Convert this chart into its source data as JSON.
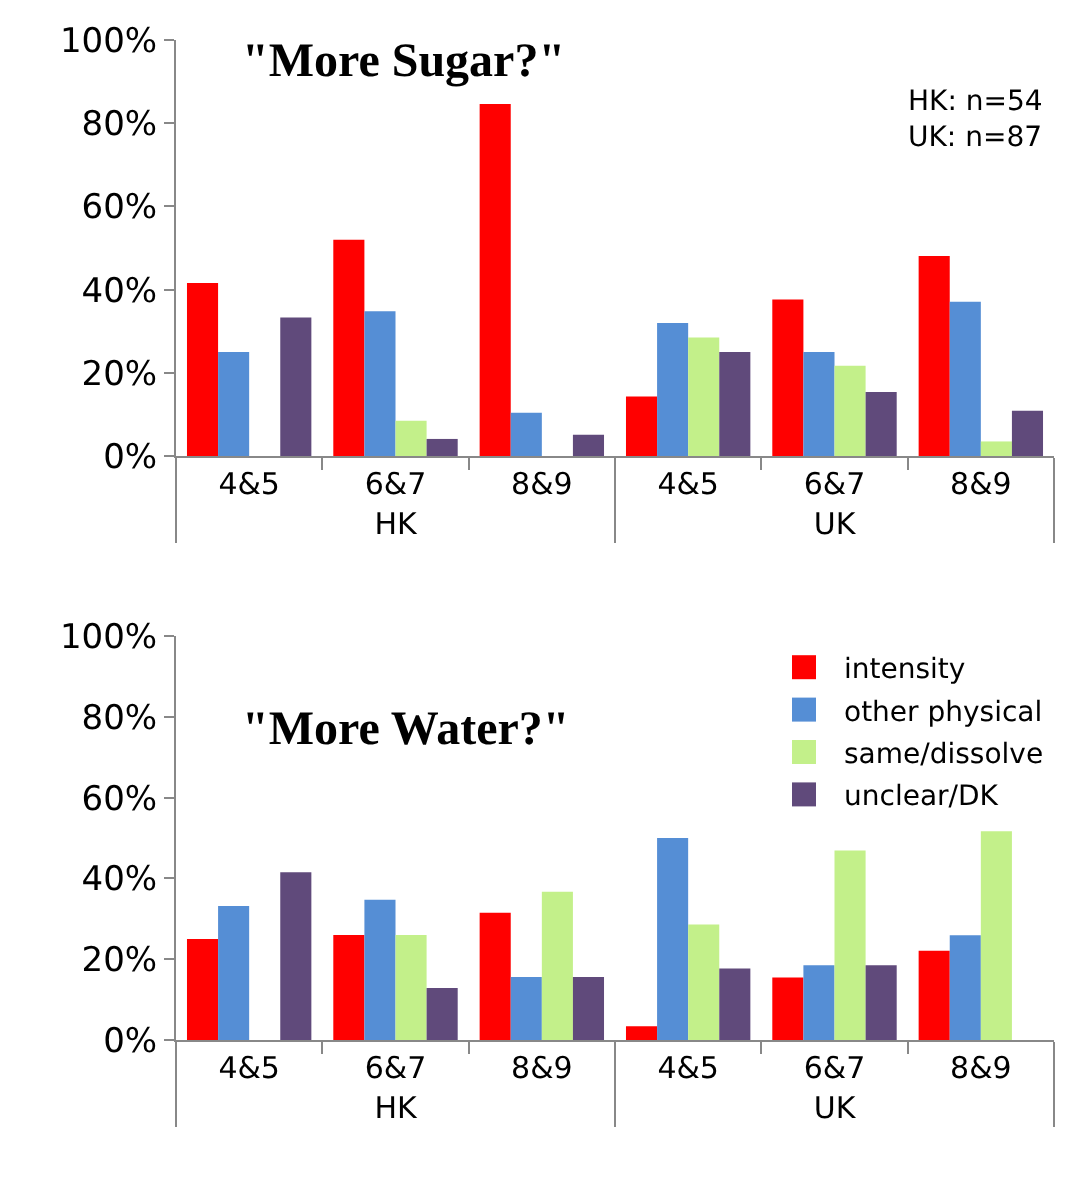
{
  "chart_data": [
    {
      "type": "bar",
      "title": "\"More Sugar?\"",
      "categories": [
        "4&5",
        "6&7",
        "8&9",
        "4&5",
        "6&7",
        "8&9"
      ],
      "ylim": [
        0,
        100
      ],
      "yticks": [
        {
          "value": 0,
          "label": "0%"
        },
        {
          "value": 20,
          "label": "20%"
        },
        {
          "value": 40,
          "label": "40%"
        },
        {
          "value": 60,
          "label": "60%"
        },
        {
          "value": 80,
          "label": "80%"
        },
        {
          "value": 100,
          "label": "100%"
        }
      ],
      "legend": false,
      "annotations": [
        "HK",
        "UK",
        "HK: n=54\nUK: n=87"
      ],
      "series": [
        {
          "color": "#ff0000",
          "values": [
            41.6,
            52,
            84.6,
            14.3,
            37.6,
            48.1
          ]
        },
        {
          "color": "#558ed5",
          "values": [
            25,
            34.8,
            10.4,
            32,
            25,
            37.1
          ]
        },
        {
          "color": "#c3f08a",
          "values": [
            null,
            8.5,
            null,
            28.5,
            21.7,
            3.5
          ]
        },
        {
          "color": "#604a7b",
          "values": [
            33.3,
            4.1,
            5.1,
            25,
            15.4,
            10.9
          ]
        }
      ]
    },
    {
      "type": "bar",
      "title": "\"More Water?\"",
      "categories": [
        "4&5",
        "6&7",
        "8&9",
        "4&5",
        "6&7",
        "8&9"
      ],
      "ylim": [
        0,
        100
      ],
      "yticks": [
        {
          "value": 0,
          "label": "0%"
        },
        {
          "value": 20,
          "label": "20%"
        },
        {
          "value": 40,
          "label": "40%"
        },
        {
          "value": 60,
          "label": "60%"
        },
        {
          "value": 80,
          "label": "80%"
        },
        {
          "value": 100,
          "label": "100%"
        }
      ],
      "legend": "top right",
      "annotations": [
        "HK",
        "UK"
      ],
      "series": [
        {
          "name": "intensity",
          "color": "#ff0000",
          "values": [
            25,
            26,
            31.5,
            3.4,
            15.5,
            22.1
          ]
        },
        {
          "name": "other physical",
          "color": "#558ed5",
          "values": [
            33.2,
            34.7,
            15.6,
            50,
            18.5,
            25.9
          ]
        },
        {
          "name": "same/dissolve",
          "color": "#c3f08a",
          "values": [
            null,
            26,
            36.7,
            28.6,
            46.9,
            51.7
          ]
        },
        {
          "name": "unclear/DK",
          "color": "#604a7b",
          "values": [
            41.5,
            12.9,
            15.6,
            17.7,
            18.5,
            null
          ]
        }
      ]
    }
  ]
}
